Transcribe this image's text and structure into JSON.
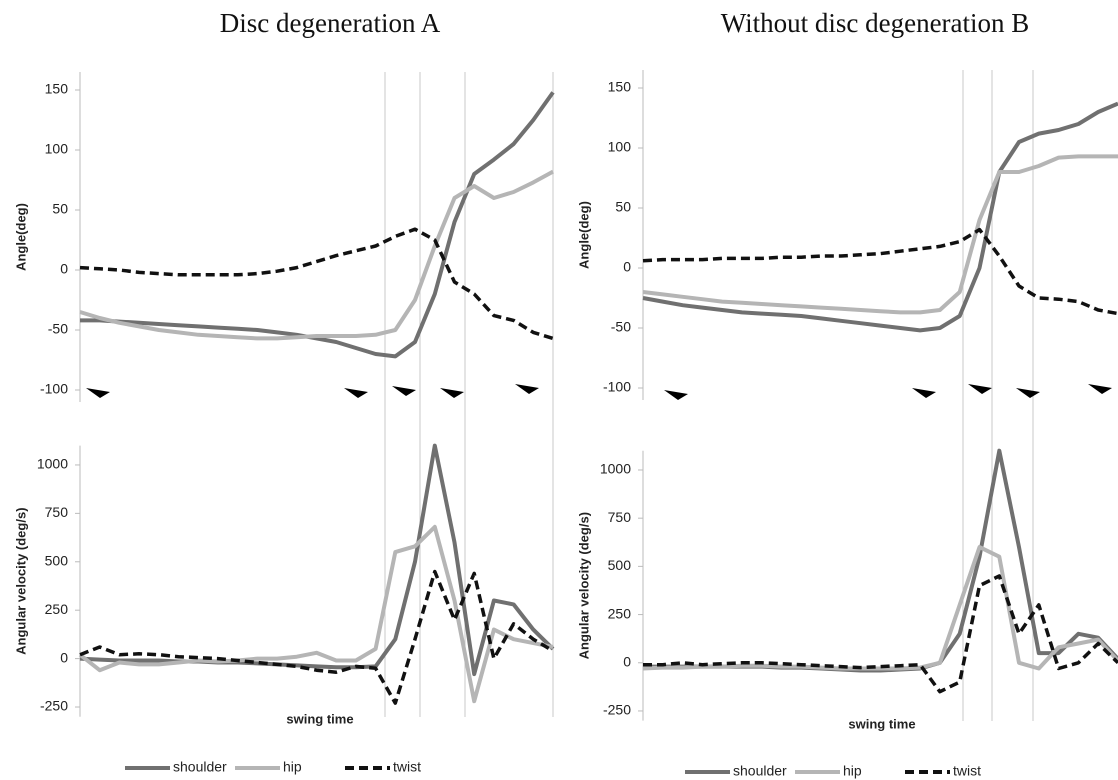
{
  "chart_data": [
    {
      "type": "line",
      "title": "Disc degeneration A",
      "y_label": "Angle(deg)",
      "ylim": [
        -110,
        165
      ],
      "yticks": [
        -100,
        -50,
        0,
        50,
        100,
        150
      ],
      "series": [
        {
          "color": "#707070",
          "dash": false,
          "values": [
            -42,
            -42,
            -43,
            -44,
            -45,
            -46,
            -47,
            -48,
            -49,
            -50,
            -52,
            -54,
            -57,
            -60,
            -65,
            -70,
            -72,
            -60,
            -20,
            40,
            80,
            92,
            105,
            125,
            148
          ]
        },
        {
          "color": "#b5b5b5",
          "dash": false,
          "values": [
            -35,
            -40,
            -44,
            -47,
            -50,
            -52,
            -54,
            -55,
            -56,
            -57,
            -57,
            -56,
            -55,
            -55,
            -55,
            -54,
            -50,
            -25,
            20,
            60,
            70,
            60,
            65,
            73,
            82
          ]
        },
        {
          "color": "#111111",
          "dash": true,
          "values": [
            2,
            1,
            0,
            -2,
            -3,
            -4,
            -4,
            -4,
            -4,
            -3,
            -1,
            2,
            7,
            12,
            16,
            20,
            28,
            34,
            25,
            -10,
            -20,
            -38,
            -42,
            -52,
            -57
          ]
        }
      ]
    },
    {
      "type": "line",
      "y_label": "Angular velocity (deg/s)",
      "x_label": "swing time",
      "ylim": [
        -300,
        1100
      ],
      "yticks": [
        -250,
        0,
        250,
        500,
        750,
        1000
      ],
      "legend": true,
      "series": [
        {
          "name": "shoulder",
          "color": "#707070",
          "dash": false,
          "values": [
            0,
            -5,
            -10,
            -10,
            -10,
            -15,
            -15,
            -20,
            -20,
            -25,
            -30,
            -35,
            -40,
            -45,
            -45,
            -40,
            100,
            500,
            1100,
            600,
            -80,
            300,
            280,
            150,
            50
          ]
        },
        {
          "name": "hip",
          "color": "#b5b5b5",
          "dash": false,
          "values": [
            20,
            -60,
            -20,
            -30,
            -30,
            -20,
            -10,
            -15,
            -10,
            0,
            0,
            10,
            30,
            -10,
            -10,
            50,
            550,
            580,
            680,
            300,
            -220,
            150,
            100,
            80,
            60
          ]
        },
        {
          "name": "twist",
          "color": "#111111",
          "dash": true,
          "values": [
            20,
            60,
            20,
            25,
            20,
            10,
            5,
            0,
            -10,
            -20,
            -30,
            -40,
            -60,
            -70,
            -40,
            -50,
            -230,
            100,
            450,
            200,
            440,
            0,
            180,
            100,
            40
          ]
        }
      ]
    },
    {
      "type": "line",
      "title": "Without disc degeneration B",
      "y_label": "Angle(deg)",
      "ylim": [
        -110,
        165
      ],
      "yticks": [
        -100,
        -50,
        0,
        50,
        100,
        150
      ],
      "series": [
        {
          "color": "#707070",
          "dash": false,
          "values": [
            -25,
            -28,
            -31,
            -33,
            -35,
            -37,
            -38,
            -39,
            -40,
            -42,
            -44,
            -46,
            -48,
            -50,
            -52,
            -50,
            -40,
            0,
            80,
            105,
            112,
            115,
            120,
            130,
            137
          ]
        },
        {
          "color": "#b5b5b5",
          "dash": false,
          "values": [
            -20,
            -22,
            -24,
            -26,
            -28,
            -29,
            -30,
            -31,
            -32,
            -33,
            -34,
            -35,
            -36,
            -37,
            -37,
            -35,
            -20,
            40,
            80,
            80,
            85,
            92,
            93,
            93,
            93
          ]
        },
        {
          "color": "#111111",
          "dash": true,
          "values": [
            6,
            7,
            7,
            7,
            8,
            8,
            8,
            9,
            9,
            10,
            10,
            11,
            12,
            14,
            16,
            18,
            22,
            32,
            10,
            -15,
            -25,
            -26,
            -28,
            -35,
            -38
          ]
        }
      ]
    },
    {
      "type": "line",
      "y_label": "Angular velocity (deg/s)",
      "x_label": "swing time",
      "ylim": [
        -300,
        1100
      ],
      "yticks": [
        -250,
        0,
        250,
        500,
        750,
        1000
      ],
      "legend": true,
      "series": [
        {
          "name": "shoulder",
          "color": "#707070",
          "dash": false,
          "values": [
            -20,
            -20,
            -20,
            -20,
            -20,
            -20,
            -20,
            -25,
            -25,
            -30,
            -35,
            -40,
            -40,
            -35,
            -30,
            0,
            150,
            550,
            1100,
            600,
            50,
            50,
            150,
            130,
            20
          ]
        },
        {
          "name": "hip",
          "color": "#b5b5b5",
          "dash": false,
          "values": [
            -30,
            -25,
            -25,
            -20,
            -20,
            -15,
            -15,
            -20,
            -20,
            -25,
            -30,
            -30,
            -30,
            -30,
            -25,
            0,
            300,
            600,
            550,
            0,
            -30,
            80,
            100,
            120,
            10
          ]
        },
        {
          "name": "twist",
          "color": "#111111",
          "dash": true,
          "values": [
            -10,
            -10,
            0,
            -10,
            -5,
            0,
            0,
            -5,
            -10,
            -15,
            -20,
            -25,
            -20,
            -15,
            -10,
            -150,
            -100,
            400,
            450,
            150,
            300,
            -30,
            0,
            100,
            0
          ]
        }
      ]
    }
  ]
}
